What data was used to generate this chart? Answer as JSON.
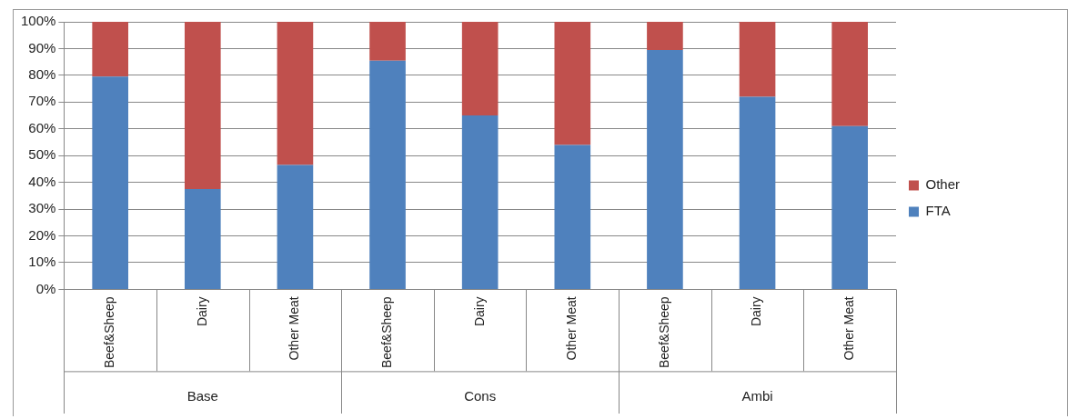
{
  "chart_data": {
    "type": "bar",
    "stacked": true,
    "categories": [
      "Beef&Sheep",
      "Dairy",
      "Other Meat",
      "Beef&Sheep",
      "Dairy",
      "Other Meat",
      "Beef&Sheep",
      "Dairy",
      "Other Meat"
    ],
    "series": [
      {
        "name": "FTA",
        "color": "#4f81bd",
        "values": [
          79.5,
          37.5,
          46.5,
          85.5,
          65,
          54,
          89.5,
          72,
          61
        ]
      },
      {
        "name": "Other",
        "color": "#c0504d",
        "values": [
          20.5,
          62.5,
          53.5,
          14.5,
          35,
          46,
          10.5,
          28,
          39
        ]
      }
    ],
    "annotations": [
      "Base",
      "Cons",
      "Ambi"
    ],
    "ylim": [
      0,
      100
    ],
    "yticks": [
      {
        "value": 0,
        "label": "0%"
      },
      {
        "value": 10,
        "label": "10%"
      },
      {
        "value": 20,
        "label": "20%"
      },
      {
        "value": 30,
        "label": "30%"
      },
      {
        "value": 40,
        "label": "40%"
      },
      {
        "value": 50,
        "label": "50%"
      },
      {
        "value": 60,
        "label": "60%"
      },
      {
        "value": 70,
        "label": "70%"
      },
      {
        "value": 80,
        "label": "80%"
      },
      {
        "value": 90,
        "label": "90%"
      },
      {
        "value": 100,
        "label": "100%"
      }
    ],
    "grid": "y",
    "legend": "right"
  }
}
